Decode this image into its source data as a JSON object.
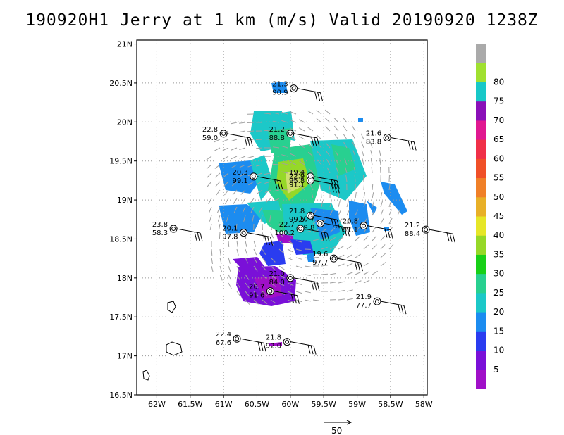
{
  "title": "190920H1 Jerry at 1 km (m/s) Valid 20190920 1238Z",
  "map": {
    "lat_labels": [
      "21N",
      "20.5N",
      "20N",
      "19.5N",
      "19N",
      "18.5N",
      "18N",
      "17.5N",
      "17N",
      "16.5N"
    ],
    "lat_values": [
      21,
      20.5,
      20,
      19.5,
      19,
      18.5,
      18,
      17.5,
      17,
      16.5
    ],
    "lon_labels": [
      "62W",
      "61.5W",
      "61W",
      "60.5W",
      "60W",
      "59.5W",
      "59W",
      "58.5W",
      "58W"
    ],
    "lon_values": [
      62,
      61.5,
      61,
      60.5,
      60,
      59.5,
      59,
      58.5,
      58
    ],
    "lon_range": [
      62.3,
      57.95
    ],
    "lat_range": [
      16.5,
      21.05
    ],
    "grid": "dotted"
  },
  "colorbar": {
    "labels": [
      "5",
      "10",
      "15",
      "20",
      "25",
      "30",
      "35",
      "40",
      "45",
      "50",
      "55",
      "60",
      "65",
      "70",
      "75",
      "80"
    ],
    "colors": [
      "#a010c8",
      "#7a10d8",
      "#2a3cf0",
      "#1c8cf0",
      "#1cc8c8",
      "#28d090",
      "#18d018",
      "#96d828",
      "#e6e628",
      "#e8b028",
      "#f08028",
      "#f05028",
      "#f03048",
      "#e01890",
      "#8a10b8",
      "#18c8c8",
      "#a0e030",
      "#aaaaaa"
    ]
  },
  "reference_vector": {
    "label": "50"
  },
  "stations": [
    {
      "t": "21.3",
      "v": "90.9",
      "lon": 59.95,
      "lat": 20.43
    },
    {
      "t": "22.8",
      "v": "59.0",
      "lon": 61.0,
      "lat": 19.85
    },
    {
      "t": "21.2",
      "v": "88.8",
      "lon": 60.0,
      "lat": 19.85
    },
    {
      "t": "21.6",
      "v": "83.8",
      "lon": 58.55,
      "lat": 19.8
    },
    {
      "t": "20.3",
      "v": "99.1",
      "lon": 60.55,
      "lat": 19.3
    },
    {
      "t": "19.4",
      "v": "95.8",
      "lon": 59.7,
      "lat": 19.3
    },
    {
      "t": "22.9",
      "v": "91.1",
      "lon": 59.7,
      "lat": 19.25
    },
    {
      "t": "23.8",
      "v": "58.3",
      "lon": 61.75,
      "lat": 18.63
    },
    {
      "t": "21.8",
      "v": "99.5",
      "lon": 59.7,
      "lat": 18.8
    },
    {
      "t": "20.7",
      "v": "99.8",
      "lon": 59.55,
      "lat": 18.7
    },
    {
      "t": "22.7",
      "v": "100.2",
      "lon": 59.85,
      "lat": 18.63
    },
    {
      "t": "20.1",
      "v": "97.8",
      "lon": 60.7,
      "lat": 18.58
    },
    {
      "t": "20.8",
      "v": "81.1",
      "lon": 58.9,
      "lat": 18.67
    },
    {
      "t": "21.2",
      "v": "88.4",
      "lon": 57.97,
      "lat": 18.62
    },
    {
      "t": "19.6",
      "v": "97.7",
      "lon": 59.35,
      "lat": 18.25
    },
    {
      "t": "21.0",
      "v": "84.0",
      "lon": 60.0,
      "lat": 18.0
    },
    {
      "t": "20.7",
      "v": "91.6",
      "lon": 60.3,
      "lat": 17.83
    },
    {
      "t": "21.9",
      "v": "77.7",
      "lon": 58.7,
      "lat": 17.7
    },
    {
      "t": "22.4",
      "v": "67.6",
      "lon": 60.8,
      "lat": 17.22
    },
    {
      "t": "21.8",
      "v": "92.0",
      "lon": 60.05,
      "lat": 17.18
    }
  ]
}
